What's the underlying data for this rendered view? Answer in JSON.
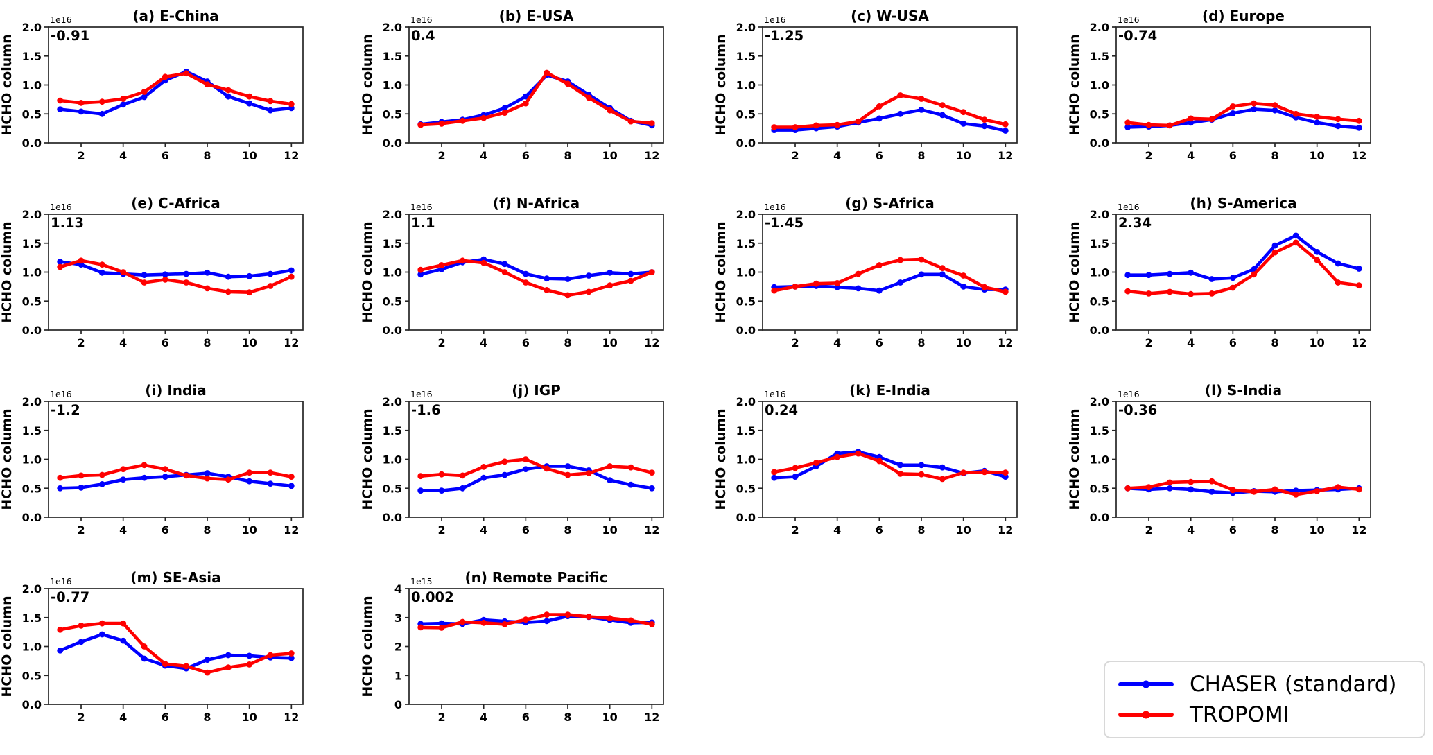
{
  "figure": {
    "ylabel": "HCHO column",
    "xticks": [
      2,
      4,
      6,
      8,
      10,
      12
    ],
    "xtick_labels": [
      "2",
      "4",
      "6",
      "8",
      "10",
      "12"
    ],
    "months": [
      1,
      2,
      3,
      4,
      5,
      6,
      7,
      8,
      9,
      10,
      11,
      12
    ],
    "annotation_color": "#1023dd",
    "axis_color": "#262626"
  },
  "legend": {
    "items": [
      {
        "label": "CHASER (standard)",
        "color": "#0000ff"
      },
      {
        "label": "TROPOMI",
        "color": "#ff0000"
      }
    ]
  },
  "chart_data": [
    {
      "type": "line",
      "title": "(a) E-China",
      "annotation": "-0.91",
      "scale_label": "1e16",
      "ylabel": "HCHO column",
      "ylim": [
        0.0,
        2.0
      ],
      "yticks": [
        0.0,
        0.5,
        1.0,
        1.5,
        2.0
      ],
      "ytick_labels": [
        "0.0",
        "0.5",
        "1.0",
        "1.5",
        "2.0"
      ],
      "series": [
        {
          "name": "CHASER (standard)",
          "color": "#0000ff",
          "values": [
            0.58,
            0.54,
            0.5,
            0.66,
            0.79,
            1.08,
            1.23,
            1.06,
            0.8,
            0.68,
            0.56,
            0.6
          ]
        },
        {
          "name": "TROPOMI",
          "color": "#ff0000",
          "values": [
            0.73,
            0.69,
            0.71,
            0.76,
            0.88,
            1.14,
            1.2,
            1.01,
            0.91,
            0.8,
            0.72,
            0.67
          ]
        }
      ]
    },
    {
      "type": "line",
      "title": "(b) E-USA",
      "annotation": "0.4",
      "scale_label": "1e16",
      "ylabel": "HCHO column",
      "ylim": [
        0.0,
        2.0
      ],
      "yticks": [
        0.0,
        0.5,
        1.0,
        1.5,
        2.0
      ],
      "ytick_labels": [
        "0.0",
        "0.5",
        "1.0",
        "1.5",
        "2.0"
      ],
      "series": [
        {
          "name": "CHASER (standard)",
          "color": "#0000ff",
          "values": [
            0.32,
            0.36,
            0.4,
            0.48,
            0.6,
            0.8,
            1.17,
            1.06,
            0.83,
            0.6,
            0.38,
            0.3
          ]
        },
        {
          "name": "TROPOMI",
          "color": "#ff0000",
          "values": [
            0.31,
            0.33,
            0.38,
            0.43,
            0.52,
            0.68,
            1.21,
            1.02,
            0.78,
            0.56,
            0.37,
            0.34
          ]
        }
      ]
    },
    {
      "type": "line",
      "title": "(c) W-USA",
      "annotation": "-1.25",
      "scale_label": "1e16",
      "ylabel": "HCHO column",
      "ylim": [
        0.0,
        2.0
      ],
      "yticks": [
        0.0,
        0.5,
        1.0,
        1.5,
        2.0
      ],
      "ytick_labels": [
        "0.0",
        "0.5",
        "1.0",
        "1.5",
        "2.0"
      ],
      "series": [
        {
          "name": "CHASER (standard)",
          "color": "#0000ff",
          "values": [
            0.22,
            0.22,
            0.25,
            0.28,
            0.35,
            0.42,
            0.5,
            0.57,
            0.48,
            0.33,
            0.29,
            0.21
          ]
        },
        {
          "name": "TROPOMI",
          "color": "#ff0000",
          "values": [
            0.27,
            0.27,
            0.3,
            0.31,
            0.37,
            0.63,
            0.82,
            0.76,
            0.65,
            0.53,
            0.4,
            0.32
          ]
        }
      ]
    },
    {
      "type": "line",
      "title": "(d) Europe",
      "annotation": "-0.74",
      "scale_label": "1e16",
      "ylabel": "HCHO column",
      "ylim": [
        0.0,
        2.0
      ],
      "yticks": [
        0.0,
        0.5,
        1.0,
        1.5,
        2.0
      ],
      "ytick_labels": [
        "0.0",
        "0.5",
        "1.0",
        "1.5",
        "2.0"
      ],
      "series": [
        {
          "name": "CHASER (standard)",
          "color": "#0000ff",
          "values": [
            0.27,
            0.28,
            0.3,
            0.35,
            0.4,
            0.51,
            0.58,
            0.56,
            0.44,
            0.35,
            0.29,
            0.26
          ]
        },
        {
          "name": "TROPOMI",
          "color": "#ff0000",
          "values": [
            0.35,
            0.31,
            0.3,
            0.42,
            0.41,
            0.63,
            0.68,
            0.65,
            0.5,
            0.45,
            0.41,
            0.38
          ]
        }
      ]
    },
    {
      "type": "line",
      "title": "(e) C-Africa",
      "annotation": "1.13",
      "scale_label": "1e16",
      "ylabel": "HCHO column",
      "ylim": [
        0.0,
        2.0
      ],
      "yticks": [
        0.0,
        0.5,
        1.0,
        1.5,
        2.0
      ],
      "ytick_labels": [
        "0.0",
        "0.5",
        "1.0",
        "1.5",
        "2.0"
      ],
      "series": [
        {
          "name": "CHASER (standard)",
          "color": "#0000ff",
          "values": [
            1.18,
            1.13,
            0.99,
            0.97,
            0.95,
            0.96,
            0.97,
            0.99,
            0.92,
            0.93,
            0.97,
            1.03
          ]
        },
        {
          "name": "TROPOMI",
          "color": "#ff0000",
          "values": [
            1.09,
            1.2,
            1.13,
            1.0,
            0.82,
            0.87,
            0.82,
            0.72,
            0.66,
            0.65,
            0.76,
            0.92
          ]
        }
      ]
    },
    {
      "type": "line",
      "title": "(f) N-Africa",
      "annotation": "1.1",
      "scale_label": "1e16",
      "ylabel": "HCHO column",
      "ylim": [
        0.0,
        2.0
      ],
      "yticks": [
        0.0,
        0.5,
        1.0,
        1.5,
        2.0
      ],
      "ytick_labels": [
        "0.0",
        "0.5",
        "1.0",
        "1.5",
        "2.0"
      ],
      "series": [
        {
          "name": "CHASER (standard)",
          "color": "#0000ff",
          "values": [
            0.96,
            1.05,
            1.17,
            1.22,
            1.14,
            0.97,
            0.89,
            0.88,
            0.94,
            0.99,
            0.97,
            1.0
          ]
        },
        {
          "name": "TROPOMI",
          "color": "#ff0000",
          "values": [
            1.04,
            1.12,
            1.2,
            1.16,
            1.0,
            0.82,
            0.69,
            0.6,
            0.66,
            0.77,
            0.85,
            1.0
          ]
        }
      ]
    },
    {
      "type": "line",
      "title": "(g) S-Africa",
      "annotation": "-1.45",
      "scale_label": "1e16",
      "ylabel": "HCHO column",
      "ylim": [
        0.0,
        2.0
      ],
      "yticks": [
        0.0,
        0.5,
        1.0,
        1.5,
        2.0
      ],
      "ytick_labels": [
        "0.0",
        "0.5",
        "1.0",
        "1.5",
        "2.0"
      ],
      "series": [
        {
          "name": "CHASER (standard)",
          "color": "#0000ff",
          "values": [
            0.74,
            0.75,
            0.76,
            0.74,
            0.72,
            0.68,
            0.82,
            0.96,
            0.96,
            0.75,
            0.7,
            0.7
          ]
        },
        {
          "name": "TROPOMI",
          "color": "#ff0000",
          "values": [
            0.68,
            0.75,
            0.8,
            0.81,
            0.97,
            1.12,
            1.21,
            1.22,
            1.07,
            0.94,
            0.74,
            0.66
          ]
        }
      ]
    },
    {
      "type": "line",
      "title": "(h) S-America",
      "annotation": "2.34",
      "scale_label": "1e16",
      "ylabel": "HCHO column",
      "ylim": [
        0.0,
        2.0
      ],
      "yticks": [
        0.0,
        0.5,
        1.0,
        1.5,
        2.0
      ],
      "ytick_labels": [
        "0.0",
        "0.5",
        "1.0",
        "1.5",
        "2.0"
      ],
      "series": [
        {
          "name": "CHASER (standard)",
          "color": "#0000ff",
          "values": [
            0.95,
            0.95,
            0.97,
            0.99,
            0.88,
            0.9,
            1.05,
            1.46,
            1.63,
            1.35,
            1.15,
            1.06
          ]
        },
        {
          "name": "TROPOMI",
          "color": "#ff0000",
          "values": [
            0.67,
            0.63,
            0.66,
            0.62,
            0.63,
            0.73,
            0.96,
            1.34,
            1.51,
            1.21,
            0.82,
            0.77
          ]
        }
      ]
    },
    {
      "type": "line",
      "title": "(i) India",
      "annotation": "-1.2",
      "scale_label": "1e16",
      "ylabel": "HCHO column",
      "ylim": [
        0.0,
        2.0
      ],
      "yticks": [
        0.0,
        0.5,
        1.0,
        1.5,
        2.0
      ],
      "ytick_labels": [
        "0.0",
        "0.5",
        "1.0",
        "1.5",
        "2.0"
      ],
      "series": [
        {
          "name": "CHASER (standard)",
          "color": "#0000ff",
          "values": [
            0.5,
            0.51,
            0.57,
            0.65,
            0.68,
            0.7,
            0.73,
            0.76,
            0.7,
            0.62,
            0.58,
            0.54
          ]
        },
        {
          "name": "TROPOMI",
          "color": "#ff0000",
          "values": [
            0.68,
            0.72,
            0.73,
            0.83,
            0.9,
            0.83,
            0.72,
            0.67,
            0.65,
            0.77,
            0.77,
            0.7
          ]
        }
      ]
    },
    {
      "type": "line",
      "title": "(j) IGP",
      "annotation": "-1.6",
      "scale_label": "1e16",
      "ylabel": "HCHO column",
      "ylim": [
        0.0,
        2.0
      ],
      "yticks": [
        0.0,
        0.5,
        1.0,
        1.5,
        2.0
      ],
      "ytick_labels": [
        "0.0",
        "0.5",
        "1.0",
        "1.5",
        "2.0"
      ],
      "series": [
        {
          "name": "CHASER (standard)",
          "color": "#0000ff",
          "values": [
            0.46,
            0.46,
            0.5,
            0.68,
            0.73,
            0.83,
            0.88,
            0.88,
            0.81,
            0.64,
            0.56,
            0.5
          ]
        },
        {
          "name": "TROPOMI",
          "color": "#ff0000",
          "values": [
            0.71,
            0.74,
            0.72,
            0.87,
            0.96,
            1.0,
            0.84,
            0.73,
            0.76,
            0.88,
            0.86,
            0.77
          ]
        }
      ]
    },
    {
      "type": "line",
      "title": "(k) E-India",
      "annotation": "0.24",
      "scale_label": "1e16",
      "ylabel": "HCHO column",
      "ylim": [
        0.0,
        2.0
      ],
      "yticks": [
        0.0,
        0.5,
        1.0,
        1.5,
        2.0
      ],
      "ytick_labels": [
        "0.0",
        "0.5",
        "1.0",
        "1.5",
        "2.0"
      ],
      "series": [
        {
          "name": "CHASER (standard)",
          "color": "#0000ff",
          "values": [
            0.68,
            0.7,
            0.88,
            1.1,
            1.13,
            1.04,
            0.9,
            0.9,
            0.86,
            0.76,
            0.8,
            0.7
          ]
        },
        {
          "name": "TROPOMI",
          "color": "#ff0000",
          "values": [
            0.78,
            0.85,
            0.94,
            1.04,
            1.1,
            0.97,
            0.75,
            0.74,
            0.66,
            0.77,
            0.78,
            0.77
          ]
        }
      ]
    },
    {
      "type": "line",
      "title": "(l) S-India",
      "annotation": "-0.36",
      "scale_label": "1e16",
      "ylabel": "HCHO column",
      "ylim": [
        0.0,
        2.0
      ],
      "yticks": [
        0.0,
        0.5,
        1.0,
        1.5,
        2.0
      ],
      "ytick_labels": [
        "0.0",
        "0.5",
        "1.0",
        "1.5",
        "2.0"
      ],
      "series": [
        {
          "name": "CHASER (standard)",
          "color": "#0000ff",
          "values": [
            0.5,
            0.48,
            0.5,
            0.48,
            0.44,
            0.42,
            0.45,
            0.44,
            0.46,
            0.47,
            0.48,
            0.5
          ]
        },
        {
          "name": "TROPOMI",
          "color": "#ff0000",
          "values": [
            0.5,
            0.52,
            0.6,
            0.61,
            0.62,
            0.47,
            0.44,
            0.48,
            0.39,
            0.45,
            0.52,
            0.48
          ]
        }
      ]
    },
    {
      "type": "line",
      "title": "(m) SE-Asia",
      "annotation": "-0.77",
      "scale_label": "1e16",
      "ylabel": "HCHO column",
      "ylim": [
        0.0,
        2.0
      ],
      "yticks": [
        0.0,
        0.5,
        1.0,
        1.5,
        2.0
      ],
      "ytick_labels": [
        "0.0",
        "0.5",
        "1.0",
        "1.5",
        "2.0"
      ],
      "series": [
        {
          "name": "CHASER (standard)",
          "color": "#0000ff",
          "values": [
            0.93,
            1.08,
            1.21,
            1.1,
            0.79,
            0.67,
            0.62,
            0.77,
            0.85,
            0.84,
            0.81,
            0.8
          ]
        },
        {
          "name": "TROPOMI",
          "color": "#ff0000",
          "values": [
            1.29,
            1.36,
            1.4,
            1.4,
            1.0,
            0.7,
            0.66,
            0.55,
            0.64,
            0.69,
            0.85,
            0.88
          ]
        }
      ]
    },
    {
      "type": "line",
      "title": "(n) Remote Pacific",
      "annotation": "0.002",
      "scale_label": "1e15",
      "ylabel": "HCHO column",
      "ylim": [
        0.0,
        4.0
      ],
      "yticks": [
        0,
        1,
        2,
        3,
        4
      ],
      "ytick_labels": [
        "0",
        "1",
        "2",
        "3",
        "4"
      ],
      "series": [
        {
          "name": "CHASER (standard)",
          "color": "#0000ff",
          "values": [
            2.78,
            2.8,
            2.78,
            2.92,
            2.87,
            2.83,
            2.88,
            3.05,
            3.02,
            2.92,
            2.82,
            2.83
          ]
        },
        {
          "name": "TROPOMI",
          "color": "#ff0000",
          "values": [
            2.66,
            2.65,
            2.85,
            2.82,
            2.77,
            2.93,
            3.1,
            3.1,
            3.03,
            2.98,
            2.9,
            2.77
          ]
        }
      ]
    }
  ]
}
